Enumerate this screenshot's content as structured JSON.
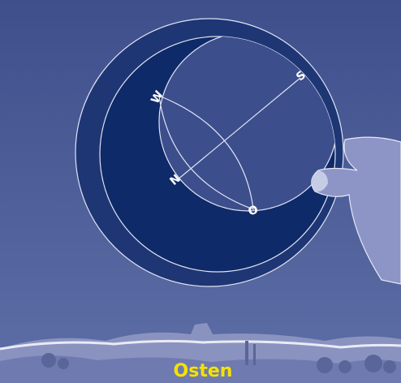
{
  "compass": {
    "west": "W",
    "south": "S",
    "north": "N",
    "east": "O"
  },
  "caption": "Osten"
}
